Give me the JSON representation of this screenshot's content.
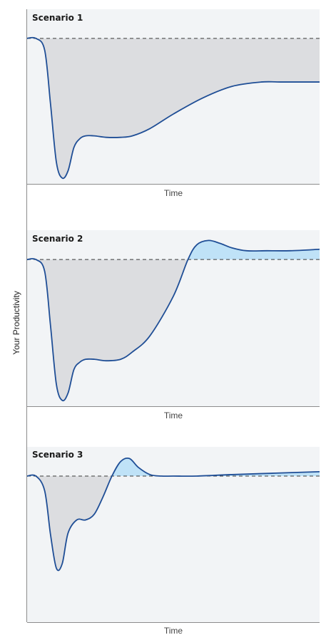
{
  "y_axis_label": "Your Productivity",
  "chart_data": [
    {
      "type": "area",
      "title": "Scenario 1",
      "xlabel": "Time",
      "ylabel": "Your Productivity",
      "baseline": 100,
      "ylim": [
        0,
        120
      ],
      "xlim": [
        0,
        100
      ],
      "colors": {
        "curve": "#1f4e96",
        "loss": "#dcdde0",
        "gain": "#bfe2f7"
      },
      "x": [
        0,
        3,
        6,
        8,
        10,
        12,
        14,
        16,
        18,
        20,
        23,
        27,
        32,
        36,
        42,
        50,
        60,
        70,
        80,
        87,
        94,
        100
      ],
      "y": [
        100,
        100,
        92,
        55,
        15,
        4,
        9,
        25,
        31,
        33,
        33,
        32,
        32,
        33,
        38,
        48,
        59,
        67,
        70,
        70,
        70,
        70
      ]
    },
    {
      "type": "area",
      "title": "Scenario 2",
      "xlabel": "Time",
      "ylabel": "Your Productivity",
      "baseline": 100,
      "ylim": [
        0,
        120
      ],
      "xlim": [
        0,
        100
      ],
      "colors": {
        "curve": "#1f4e96",
        "loss": "#dcdde0",
        "gain": "#bfe2f7"
      },
      "x": [
        0,
        3,
        6,
        8,
        10,
        12,
        14,
        16,
        18,
        20,
        23,
        27,
        32,
        36,
        42,
        50,
        55,
        58,
        62,
        66,
        70,
        75,
        82,
        90,
        100
      ],
      "y": [
        100,
        100,
        92,
        55,
        15,
        4,
        9,
        25,
        30,
        32,
        32,
        31,
        32,
        37,
        48,
        75,
        100,
        110,
        113,
        111,
        108,
        106,
        106,
        106,
        107
      ]
    },
    {
      "type": "area",
      "title": "Scenario 3",
      "xlabel": "Time",
      "ylabel": "Your Productivity",
      "baseline": 100,
      "ylim": [
        0,
        120
      ],
      "xlim": [
        0,
        100
      ],
      "colors": {
        "curve": "#1f4e96",
        "loss": "#dcdde0",
        "gain": "#bfe2f7"
      },
      "x": [
        0,
        3,
        6,
        8,
        10,
        12,
        14,
        17,
        20,
        23,
        26,
        29,
        32,
        35,
        38,
        42,
        46,
        50,
        58,
        70,
        85,
        100
      ],
      "y": [
        100,
        100,
        90,
        60,
        37,
        40,
        61,
        70,
        70,
        74,
        86,
        100,
        110,
        112,
        106,
        101,
        100,
        100,
        100,
        101,
        102,
        103
      ]
    }
  ]
}
